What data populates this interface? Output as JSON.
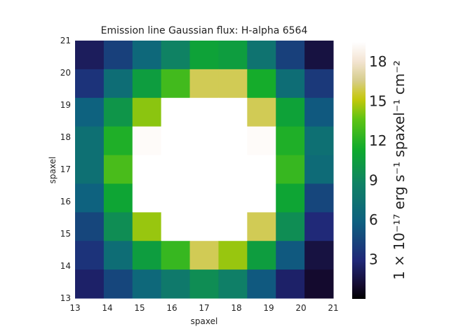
{
  "chart_data": {
    "type": "heatmap",
    "title": "Emission line Gaussian flux: H-alpha 6564",
    "xlabel": "spaxel",
    "ylabel": "spaxel",
    "x_ticks": [
      "13",
      "14",
      "15",
      "16",
      "17",
      "18",
      "19",
      "20",
      "21"
    ],
    "y_ticks": [
      "13",
      "14",
      "15",
      "16",
      "17",
      "18",
      "19",
      "20",
      "21"
    ],
    "xlim": [
      13,
      21
    ],
    "ylim": [
      13,
      21
    ],
    "colormap": "gist_earth-like (black → navy → teal → green → yellow → white)",
    "colorbar": {
      "label": "1 × 10⁻¹⁷ erg s⁻¹ spaxel⁻¹ cm⁻²",
      "ticks": [
        "3",
        "6",
        "9",
        "12",
        "15",
        "18"
      ],
      "range": [
        0,
        19.5
      ]
    },
    "rows_top_to_bottom": [
      [
        2.2,
        4.2,
        6.5,
        8.8,
        10.8,
        10.5,
        7.5,
        4.2,
        1.5
      ],
      [
        3.5,
        7.0,
        10.5,
        12.8,
        16.0,
        16.0,
        11.5,
        7.0,
        3.8
      ],
      [
        6.0,
        10.0,
        14.3,
        19.5,
        19.5,
        19.5,
        16.0,
        10.8,
        5.5
      ],
      [
        7.2,
        11.8,
        19.3,
        19.5,
        19.5,
        19.5,
        19.3,
        11.8,
        7.2
      ],
      [
        7.2,
        13.0,
        19.5,
        19.5,
        19.5,
        19.5,
        19.5,
        12.5,
        6.8
      ],
      [
        6.0,
        11.0,
        19.5,
        19.5,
        19.5,
        19.5,
        19.5,
        11.0,
        4.5
      ],
      [
        4.5,
        9.5,
        14.5,
        19.5,
        19.5,
        19.5,
        16.0,
        9.5,
        3.0
      ],
      [
        3.5,
        7.0,
        10.5,
        12.5,
        16.0,
        14.5,
        10.5,
        5.5,
        1.5
      ],
      [
        2.5,
        4.5,
        6.5,
        8.0,
        9.5,
        8.5,
        5.5,
        2.5,
        1.0
      ]
    ]
  }
}
